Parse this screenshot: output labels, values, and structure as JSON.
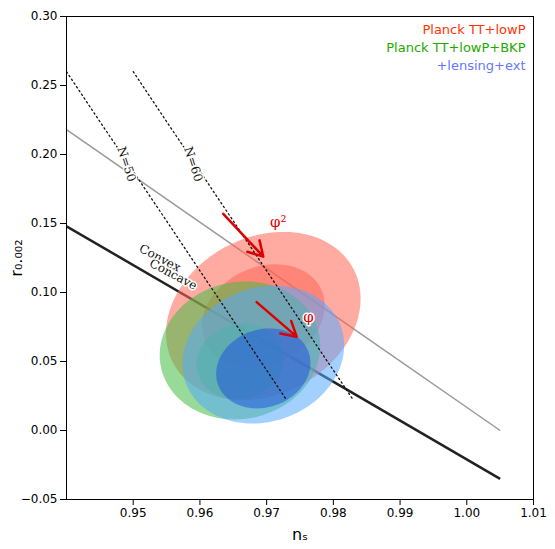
{
  "chart_data": {
    "type": "contour",
    "xlabel": "nₛ",
    "ylabel": "r₀.₀₀₂",
    "xlim": [
      0.94,
      1.01
    ],
    "ylim": [
      -0.05,
      0.3
    ],
    "xticks": [
      0.95,
      0.96,
      0.97,
      0.98,
      0.99,
      {
        "value": 1.0,
        "label": "1.00"
      },
      1.01
    ],
    "yticks": [
      {
        "value": -0.05,
        "label": "−0.05"
      },
      {
        "value": 0.0,
        "label": "0.00"
      },
      0.05,
      {
        "value": 0.1,
        "label": "0.10"
      },
      0.15,
      {
        "value": 0.2,
        "label": "0.20"
      },
      0.25,
      {
        "value": 0.3,
        "label": "0.30"
      }
    ],
    "legend": "upper right",
    "series": [
      {
        "name": "Planck TT+lowP",
        "color": "#FF3300",
        "contours": [
          {
            "cx": 0.9695,
            "cy": 0.083,
            "width": 0.0285,
            "height": 0.122,
            "angle": -3,
            "color": "#FF6655"
          },
          {
            "cx": 0.9695,
            "cy": 0.083,
            "width": 0.018,
            "height": 0.075,
            "angle": -3,
            "color": "#FF6655"
          }
        ]
      },
      {
        "name": "Planck TT+lowP+BKP",
        "color": "#22AA00",
        "contours": [
          {
            "cx": 0.966,
            "cy": 0.058,
            "width": 0.024,
            "height": 0.1,
            "angle": -1,
            "color": "#44BB44"
          },
          {
            "cx": 0.966,
            "cy": 0.05,
            "width": 0.013,
            "height": 0.055,
            "angle": -1,
            "color": "#44BB44"
          }
        ]
      },
      {
        "name": "+lensing+ext",
        "color": "#6677FF",
        "contours": [
          {
            "cx": 0.9695,
            "cy": 0.055,
            "width": 0.024,
            "height": 0.1,
            "angle": -2,
            "color": "#55AAFF"
          },
          {
            "cx": 0.9695,
            "cy": 0.045,
            "width": 0.014,
            "height": 0.058,
            "angle": -2,
            "color": "#2255DD"
          }
        ]
      }
    ],
    "lines": [
      {
        "x": [
          0.94,
          1.005
        ],
        "y": [
          0.218,
          0.0
        ],
        "color": "#999999",
        "line_style": "solid"
      },
      {
        "x": [
          0.94,
          1.005
        ],
        "y": [
          0.148,
          -0.035
        ],
        "color": "#222222",
        "line_style": "solid"
      },
      {
        "x": [
          0.94,
          0.973
        ],
        "y": [
          0.26,
          0.022
        ],
        "color": "#111111",
        "line_style": "dotted"
      },
      {
        "x": [
          0.95,
          0.983
        ],
        "y": [
          0.26,
          0.022
        ],
        "color": "#111111",
        "line_style": "dotted"
      }
    ],
    "arrows": [
      {
        "x": [
          0.9635,
          0.9695
        ],
        "y": [
          0.157,
          0.126
        ],
        "color": "#DD0000"
      },
      {
        "x": [
          0.9685,
          0.9745
        ],
        "y": [
          0.093,
          0.068
        ],
        "color": "#DD0000"
      }
    ],
    "annotations": [
      {
        "text": "N=50",
        "x": 0.949,
        "y": 0.193,
        "color": "#111111"
      },
      {
        "text": "N=60",
        "x": 0.959,
        "y": 0.193,
        "color": "#111111"
      },
      {
        "text": "Convex",
        "x": 0.954,
        "y": 0.125,
        "color": "#111111"
      },
      {
        "text": "Concave",
        "x": 0.956,
        "y": 0.113,
        "color": "#111111"
      },
      {
        "text": "φ²",
        "x": 0.9705,
        "y": 0.151,
        "color": "#DD0000"
      },
      {
        "text": "φ",
        "x": 0.9755,
        "y": 0.082,
        "color": "#DD0000"
      }
    ]
  }
}
